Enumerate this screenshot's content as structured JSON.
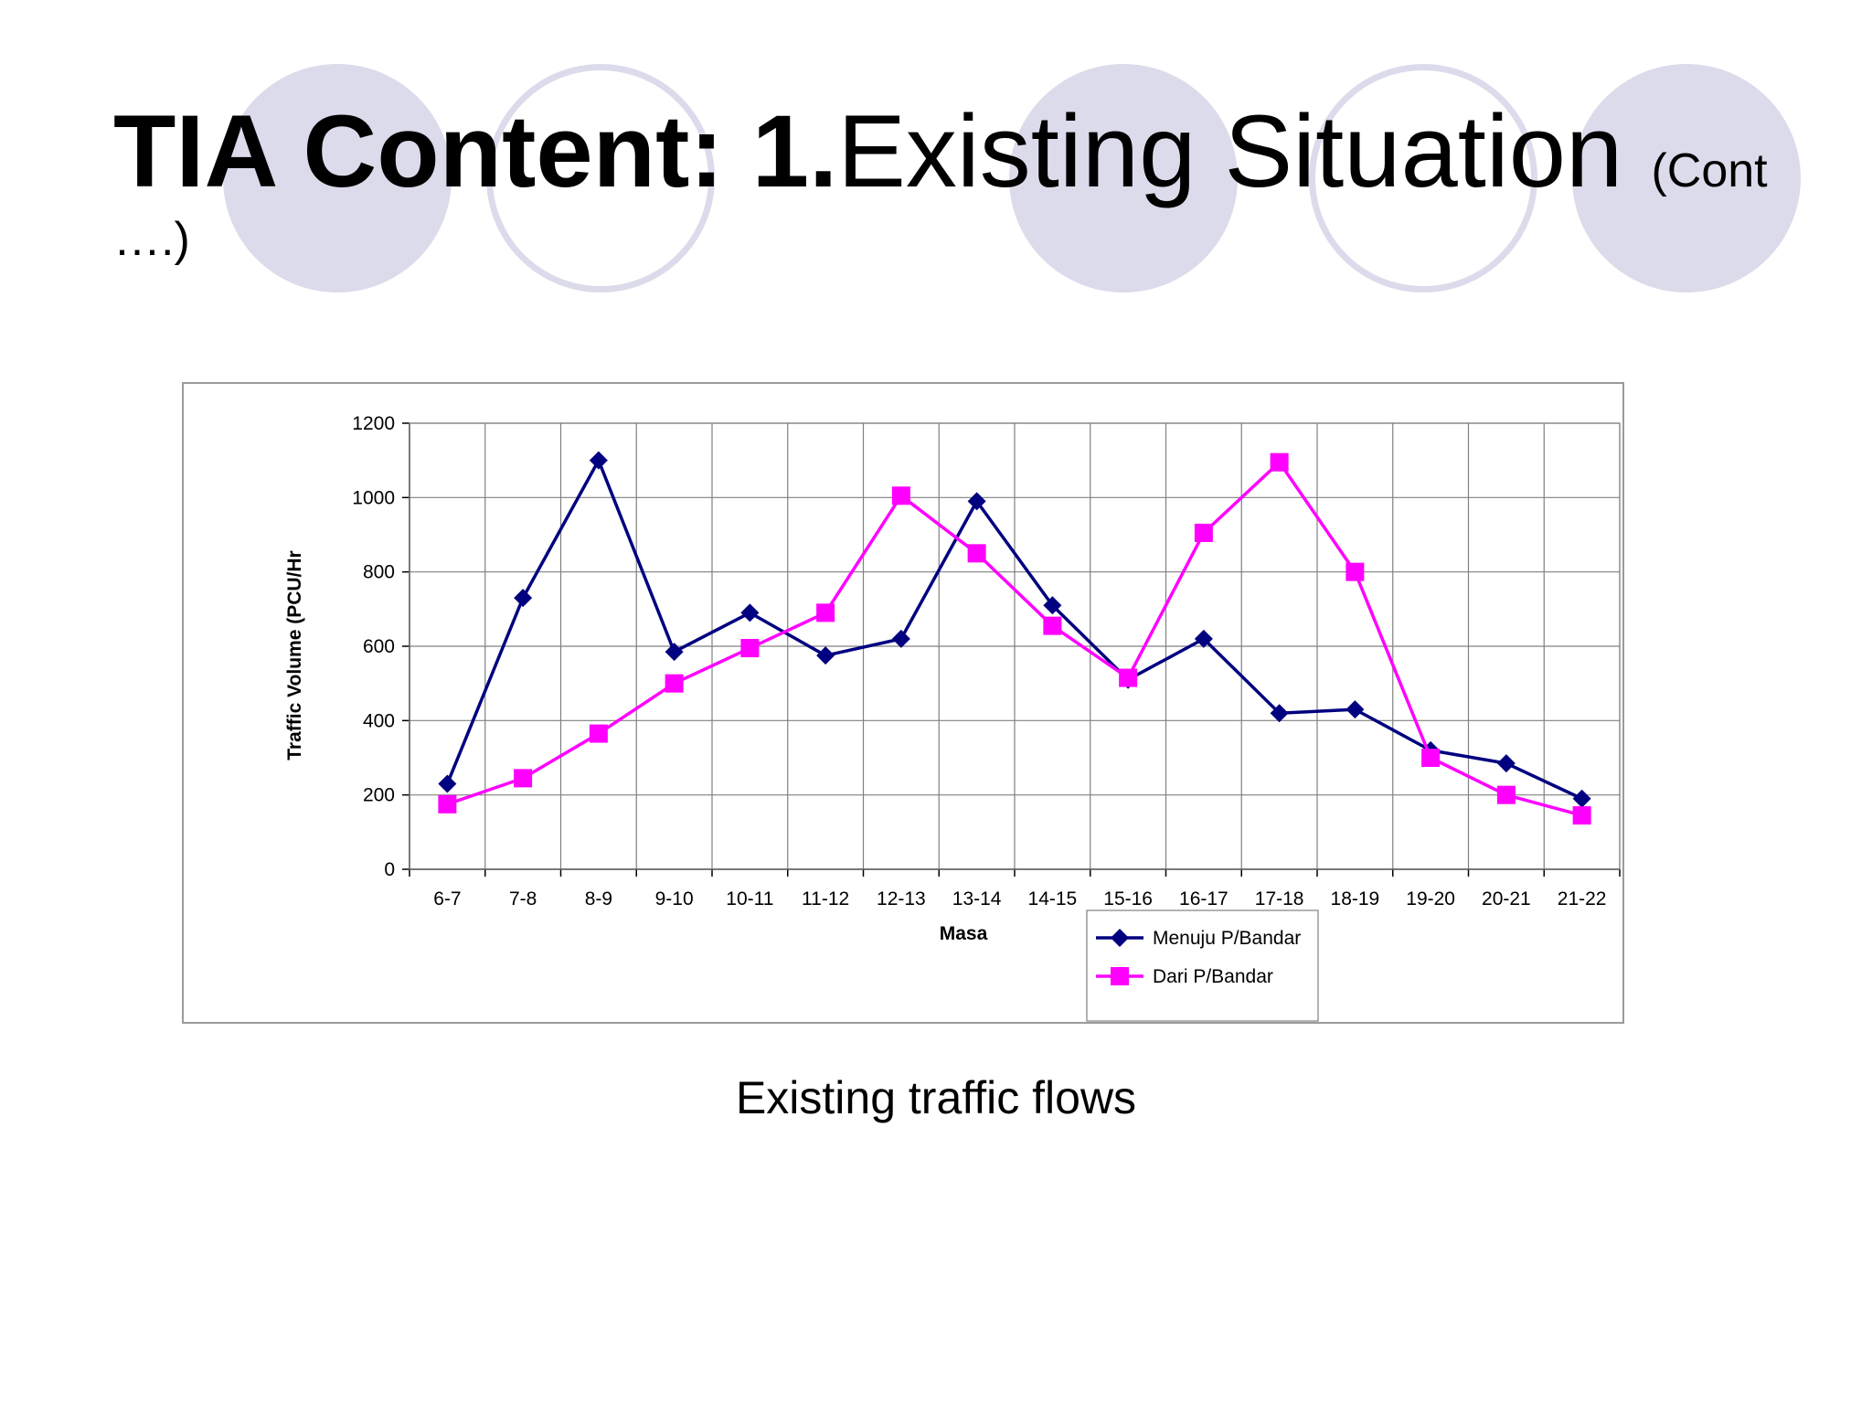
{
  "slide": {
    "title_bold": "TIA Content: 1.",
    "title_normal": "Existing Situation ",
    "title_small": "(Cont ….)",
    "caption": "Existing traffic flows"
  },
  "colors": {
    "circle_fill": "#dcdbeb",
    "series_1": "#000080",
    "series_2": "#ff00ff",
    "grid": "#808080"
  },
  "chart_data": {
    "type": "line",
    "title": "",
    "xlabel": "Masa",
    "ylabel": "Traffic Volume (PCU/Hr",
    "ylim": [
      0,
      1200
    ],
    "yticks": [
      "0",
      "200",
      "400",
      "600",
      "800",
      "1000",
      "1200"
    ],
    "grid": true,
    "legend_position": "bottom-right",
    "categories": [
      "6-7",
      "7-8",
      "8-9",
      "9-10",
      "10-11",
      "11-12",
      "12-13",
      "13-14",
      "14-15",
      "15-16",
      "16-17",
      "17-18",
      "18-19",
      "19-20",
      "20-21",
      "21-22"
    ],
    "series": [
      {
        "name": "Menuju P/Bandar",
        "marker": "diamond",
        "color": "#000080",
        "values": [
          230,
          730,
          1100,
          585,
          690,
          575,
          620,
          990,
          710,
          510,
          620,
          420,
          430,
          320,
          285,
          190
        ]
      },
      {
        "name": "Dari P/Bandar",
        "marker": "square",
        "color": "#ff00ff",
        "values": [
          175,
          245,
          365,
          500,
          595,
          690,
          1005,
          850,
          655,
          515,
          905,
          1095,
          800,
          300,
          200,
          145
        ]
      }
    ]
  }
}
